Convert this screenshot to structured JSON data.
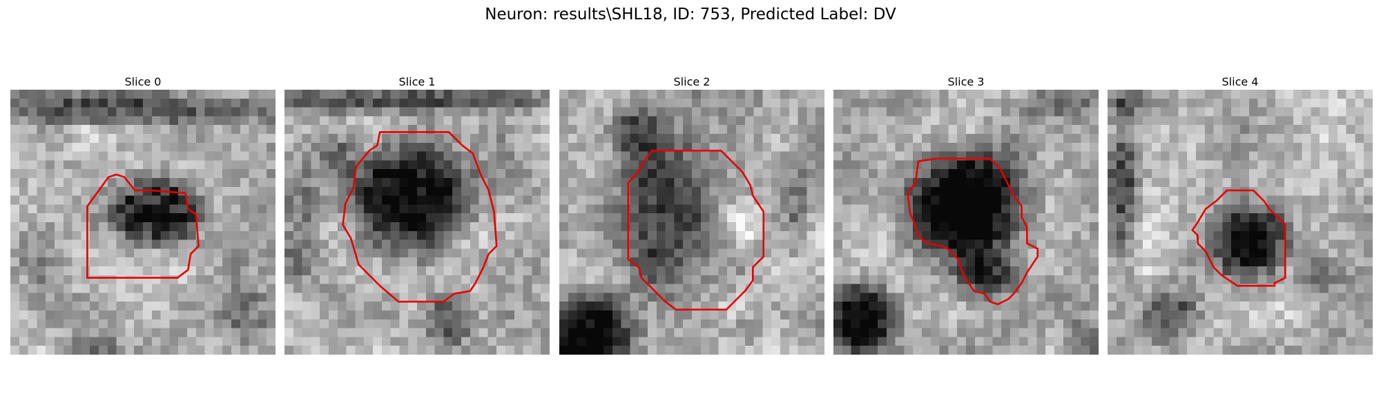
{
  "title": "Neuron: results\\SHL18, ID: 753, Predicted Label: DV",
  "slices": [
    {
      "label": "Slice 0",
      "seed": 11,
      "blobs": [
        [
          0.55,
          0.46,
          0.17,
          0.14,
          0.62,
          0.17
        ],
        [
          0.46,
          0.07,
          0.7,
          0.07,
          0.35,
          0.07
        ],
        [
          0.12,
          0.62,
          0.12,
          0.16,
          0.2,
          0.07
        ],
        [
          0.3,
          0.97,
          0.12,
          0.05,
          0.4,
          0.08
        ],
        [
          0.9,
          0.85,
          0.12,
          0.12,
          0.25,
          0.07
        ],
        [
          0.3,
          0.2,
          0.1,
          0.08,
          -0.25,
          0.05
        ]
      ],
      "contour": [
        [
          0.4,
          0.32
        ],
        [
          0.43,
          0.33
        ],
        [
          0.47,
          0.38
        ],
        [
          0.53,
          0.38
        ],
        [
          0.66,
          0.39
        ],
        [
          0.67,
          0.45
        ],
        [
          0.7,
          0.47
        ],
        [
          0.71,
          0.59
        ],
        [
          0.68,
          0.62
        ],
        [
          0.67,
          0.68
        ],
        [
          0.63,
          0.71
        ],
        [
          0.29,
          0.71
        ],
        [
          0.29,
          0.44
        ],
        [
          0.37,
          0.33
        ]
      ]
    },
    {
      "label": "Slice 1",
      "seed": 23,
      "blobs": [
        [
          0.47,
          0.42,
          0.25,
          0.23,
          0.72,
          0.08
        ],
        [
          0.66,
          0.55,
          0.12,
          0.1,
          -0.15,
          0.07
        ],
        [
          0.5,
          0.04,
          0.7,
          0.05,
          0.4,
          0.07
        ],
        [
          0.62,
          0.86,
          0.1,
          0.12,
          0.4,
          0.08
        ],
        [
          0.06,
          0.5,
          0.08,
          0.25,
          0.2,
          0.06
        ],
        [
          0.2,
          0.25,
          0.08,
          0.08,
          0.2,
          0.05
        ]
      ],
      "contour": [
        [
          0.36,
          0.16
        ],
        [
          0.62,
          0.16
        ],
        [
          0.67,
          0.21
        ],
        [
          0.71,
          0.24
        ],
        [
          0.74,
          0.32
        ],
        [
          0.77,
          0.38
        ],
        [
          0.79,
          0.46
        ],
        [
          0.8,
          0.59
        ],
        [
          0.77,
          0.62
        ],
        [
          0.75,
          0.67
        ],
        [
          0.72,
          0.73
        ],
        [
          0.7,
          0.76
        ],
        [
          0.64,
          0.77
        ],
        [
          0.6,
          0.8
        ],
        [
          0.43,
          0.8
        ],
        [
          0.36,
          0.74
        ],
        [
          0.28,
          0.66
        ],
        [
          0.25,
          0.56
        ],
        [
          0.22,
          0.51
        ],
        [
          0.23,
          0.43
        ],
        [
          0.26,
          0.37
        ],
        [
          0.27,
          0.29
        ],
        [
          0.32,
          0.23
        ],
        [
          0.35,
          0.21
        ]
      ]
    },
    {
      "label": "Slice 2",
      "seed": 37,
      "blobs": [
        [
          0.4,
          0.45,
          0.22,
          0.35,
          0.48,
          0.07
        ],
        [
          0.7,
          0.5,
          0.09,
          0.09,
          -0.28,
          0.08
        ],
        [
          0.1,
          0.93,
          0.2,
          0.18,
          0.7,
          0.07
        ],
        [
          0.3,
          0.16,
          0.1,
          0.1,
          0.35,
          0.06
        ],
        [
          0.7,
          0.9,
          0.08,
          0.06,
          0.25,
          0.06
        ],
        [
          0.9,
          0.4,
          0.06,
          0.25,
          0.2,
          0.06
        ]
      ],
      "contour": [
        [
          0.35,
          0.23
        ],
        [
          0.61,
          0.23
        ],
        [
          0.65,
          0.27
        ],
        [
          0.69,
          0.31
        ],
        [
          0.72,
          0.36
        ],
        [
          0.73,
          0.4
        ],
        [
          0.75,
          0.43
        ],
        [
          0.77,
          0.46
        ],
        [
          0.77,
          0.63
        ],
        [
          0.73,
          0.67
        ],
        [
          0.73,
          0.72
        ],
        [
          0.7,
          0.76
        ],
        [
          0.65,
          0.81
        ],
        [
          0.63,
          0.83
        ],
        [
          0.44,
          0.83
        ],
        [
          0.4,
          0.8
        ],
        [
          0.37,
          0.77
        ],
        [
          0.33,
          0.73
        ],
        [
          0.31,
          0.71
        ],
        [
          0.3,
          0.67
        ],
        [
          0.26,
          0.64
        ],
        [
          0.26,
          0.35
        ],
        [
          0.29,
          0.32
        ],
        [
          0.32,
          0.27
        ]
      ]
    },
    {
      "label": "Slice 3",
      "seed": 53,
      "blobs": [
        [
          0.5,
          0.43,
          0.25,
          0.23,
          0.75,
          0.06
        ],
        [
          0.58,
          0.7,
          0.13,
          0.1,
          0.45,
          0.06
        ],
        [
          0.1,
          0.87,
          0.14,
          0.15,
          0.65,
          0.07
        ],
        [
          0.85,
          0.05,
          0.2,
          0.06,
          0.2,
          0.06
        ],
        [
          0.95,
          0.95,
          0.08,
          0.08,
          0.25,
          0.06
        ]
      ],
      "contour": [
        [
          0.32,
          0.27
        ],
        [
          0.39,
          0.26
        ],
        [
          0.59,
          0.26
        ],
        [
          0.63,
          0.3
        ],
        [
          0.66,
          0.36
        ],
        [
          0.68,
          0.4
        ],
        [
          0.71,
          0.44
        ],
        [
          0.71,
          0.48
        ],
        [
          0.73,
          0.52
        ],
        [
          0.73,
          0.58
        ],
        [
          0.77,
          0.6
        ],
        [
          0.77,
          0.63
        ],
        [
          0.73,
          0.69
        ],
        [
          0.71,
          0.73
        ],
        [
          0.68,
          0.77
        ],
        [
          0.66,
          0.79
        ],
        [
          0.62,
          0.81
        ],
        [
          0.59,
          0.8
        ],
        [
          0.57,
          0.77
        ],
        [
          0.53,
          0.76
        ],
        [
          0.49,
          0.7
        ],
        [
          0.47,
          0.64
        ],
        [
          0.43,
          0.6
        ],
        [
          0.41,
          0.59
        ],
        [
          0.35,
          0.58
        ],
        [
          0.32,
          0.55
        ],
        [
          0.3,
          0.49
        ],
        [
          0.29,
          0.47
        ],
        [
          0.28,
          0.39
        ],
        [
          0.31,
          0.35
        ]
      ]
    },
    {
      "label": "Slice 4",
      "seed": 71,
      "blobs": [
        [
          0.55,
          0.57,
          0.16,
          0.15,
          0.62,
          0.08
        ],
        [
          0.24,
          0.85,
          0.12,
          0.12,
          0.35,
          0.08
        ],
        [
          0.06,
          0.4,
          0.06,
          0.35,
          0.4,
          0.08
        ],
        [
          0.1,
          0.05,
          0.12,
          0.05,
          0.3,
          0.06
        ],
        [
          0.8,
          0.7,
          0.1,
          0.08,
          0.25,
          0.06
        ]
      ],
      "contour": [
        [
          0.45,
          0.38
        ],
        [
          0.55,
          0.38
        ],
        [
          0.59,
          0.42
        ],
        [
          0.61,
          0.45
        ],
        [
          0.65,
          0.49
        ],
        [
          0.67,
          0.51
        ],
        [
          0.67,
          0.71
        ],
        [
          0.63,
          0.73
        ],
        [
          0.63,
          0.74
        ],
        [
          0.49,
          0.74
        ],
        [
          0.46,
          0.72
        ],
        [
          0.43,
          0.7
        ],
        [
          0.4,
          0.67
        ],
        [
          0.37,
          0.61
        ],
        [
          0.34,
          0.58
        ],
        [
          0.34,
          0.55
        ],
        [
          0.32,
          0.53
        ],
        [
          0.34,
          0.5
        ],
        [
          0.37,
          0.45
        ],
        [
          0.41,
          0.42
        ]
      ]
    }
  ],
  "colors": {
    "contour": "#e60000",
    "background": "#ffffff"
  }
}
